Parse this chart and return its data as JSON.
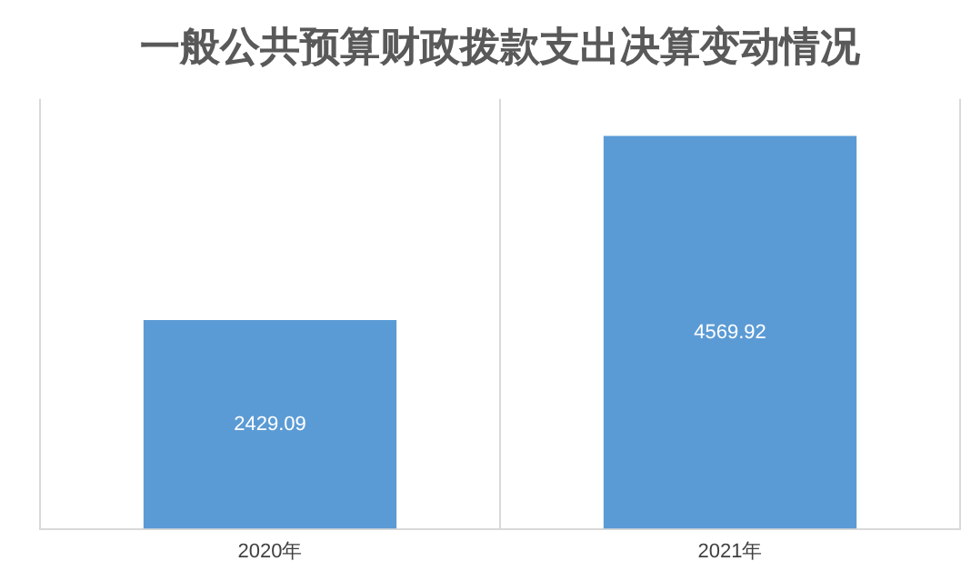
{
  "chart_data": {
    "type": "bar",
    "title": "一般公共预算财政拨款支出决算变动情况",
    "categories": [
      "2020年",
      "2021年"
    ],
    "values": [
      2429.09,
      4569.92
    ],
    "color": "#5b9bd5",
    "data_labels": true,
    "grid": "x",
    "legend": false
  }
}
